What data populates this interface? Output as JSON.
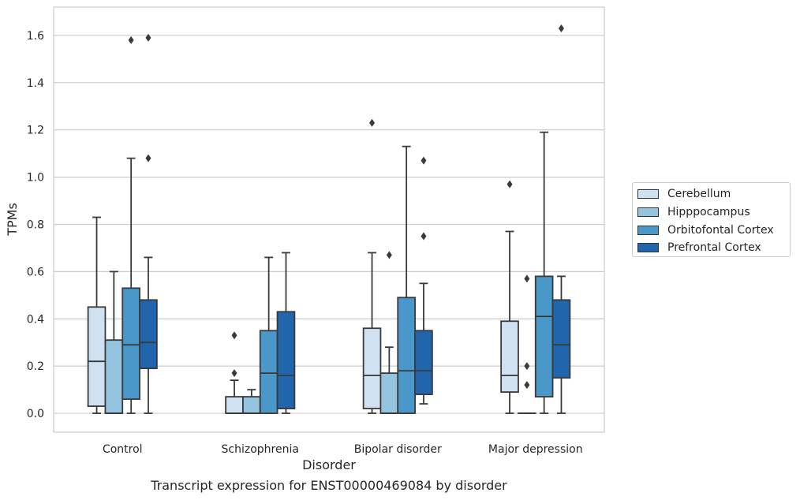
{
  "caption": "Transcript expression for ENST00000469084 by disorder",
  "chart_data": {
    "type": "boxplot",
    "xlabel": "Disorder",
    "ylabel": "TPMs",
    "ylim": [
      -0.08,
      1.72
    ],
    "yticks": [
      "0.0",
      "0.2",
      "0.4",
      "0.6",
      "0.8",
      "1.0",
      "1.2",
      "1.4",
      "1.6"
    ],
    "grid": "horizontal",
    "legend_position": "right",
    "categories": [
      "Control",
      "Schizophrenia",
      "Bipolar disorder",
      "Major depression"
    ],
    "series": [
      {
        "name": "Cerebellum",
        "color": "#d0e1f2",
        "boxes": [
          {
            "q1": 0.03,
            "median": 0.22,
            "q3": 0.45,
            "whislo": 0.0,
            "whishi": 0.83,
            "fliers": []
          },
          {
            "q1": 0.0,
            "median": 0.0,
            "q3": 0.07,
            "whislo": 0.0,
            "whishi": 0.14,
            "fliers": [
              0.17,
              0.33
            ]
          },
          {
            "q1": 0.02,
            "median": 0.16,
            "q3": 0.36,
            "whislo": 0.0,
            "whishi": 0.68,
            "fliers": [
              1.23
            ]
          },
          {
            "q1": 0.09,
            "median": 0.16,
            "q3": 0.39,
            "whislo": 0.0,
            "whishi": 0.77,
            "fliers": [
              0.97
            ]
          }
        ]
      },
      {
        "name": "Hipppocampus",
        "color": "#94c4df",
        "boxes": [
          {
            "q1": 0.0,
            "median": 0.0,
            "q3": 0.31,
            "whislo": 0.0,
            "whishi": 0.6,
            "fliers": []
          },
          {
            "q1": 0.0,
            "median": 0.0,
            "q3": 0.07,
            "whislo": 0.0,
            "whishi": 0.1,
            "fliers": []
          },
          {
            "q1": 0.0,
            "median": 0.0,
            "q3": 0.17,
            "whislo": 0.0,
            "whishi": 0.28,
            "fliers": [
              0.67
            ]
          },
          {
            "q1": 0.0,
            "median": 0.0,
            "q3": 0.0,
            "whislo": 0.0,
            "whishi": 0.0,
            "fliers": [
              0.12,
              0.2,
              0.57
            ]
          }
        ]
      },
      {
        "name": "Orbitofontal Cortex",
        "color": "#4a98c9",
        "boxes": [
          {
            "q1": 0.06,
            "median": 0.29,
            "q3": 0.53,
            "whislo": 0.0,
            "whishi": 1.08,
            "fliers": [
              1.58
            ]
          },
          {
            "q1": 0.0,
            "median": 0.17,
            "q3": 0.35,
            "whislo": 0.0,
            "whishi": 0.66,
            "fliers": []
          },
          {
            "q1": 0.0,
            "median": 0.18,
            "q3": 0.49,
            "whislo": 0.0,
            "whishi": 1.13,
            "fliers": []
          },
          {
            "q1": 0.07,
            "median": 0.41,
            "q3": 0.58,
            "whislo": 0.0,
            "whishi": 1.19,
            "fliers": []
          }
        ]
      },
      {
        "name": "Prefrontal Cortex",
        "color": "#2166ac",
        "boxes": [
          {
            "q1": 0.19,
            "median": 0.3,
            "q3": 0.48,
            "whislo": 0.0,
            "whishi": 0.66,
            "fliers": [
              1.08,
              1.59
            ]
          },
          {
            "q1": 0.02,
            "median": 0.16,
            "q3": 0.43,
            "whislo": 0.0,
            "whishi": 0.68,
            "fliers": []
          },
          {
            "q1": 0.08,
            "median": 0.18,
            "q3": 0.35,
            "whislo": 0.04,
            "whishi": 0.55,
            "fliers": [
              0.75,
              1.07
            ]
          },
          {
            "q1": 0.15,
            "median": 0.29,
            "q3": 0.48,
            "whislo": 0.0,
            "whishi": 0.58,
            "fliers": [
              1.63
            ]
          }
        ]
      }
    ]
  }
}
